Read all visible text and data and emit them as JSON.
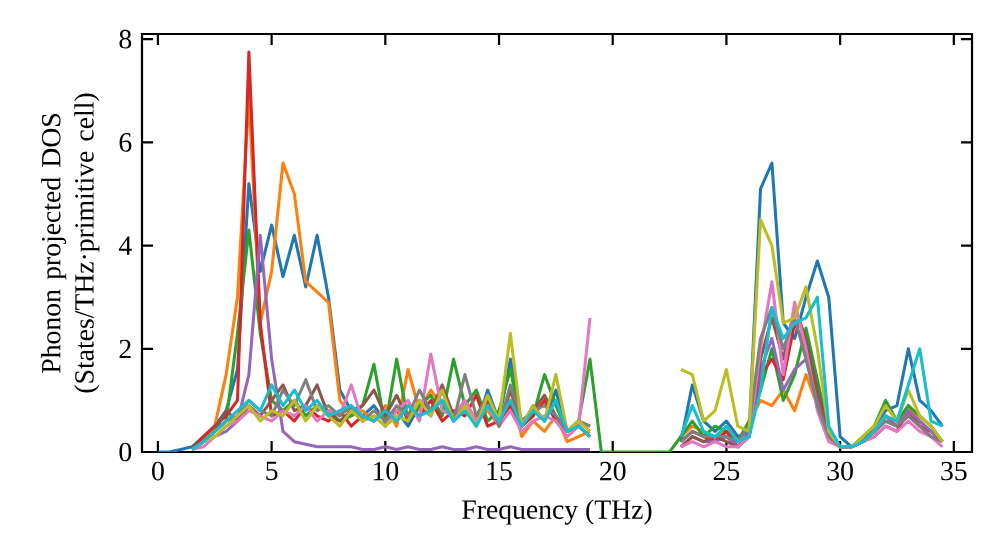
{
  "chart_data": {
    "type": "line",
    "xlabel": "Frequency (THz)",
    "ylabel": "Phonon projected DOS (States/THz·primitive cell)",
    "xlim": [
      -0.7,
      35.8
    ],
    "ylim": [
      0,
      8.1
    ],
    "xticks": [
      0,
      5,
      10,
      15,
      20,
      25,
      30,
      35
    ],
    "yticks": [
      0,
      2,
      4,
      6,
      8
    ],
    "grid": false,
    "marker": "none",
    "line_style": "solid",
    "x": [
      0,
      0.5,
      1,
      1.5,
      2,
      2.5,
      3,
      3.5,
      4,
      4.5,
      5,
      5.5,
      6,
      6.5,
      7,
      7.5,
      8,
      8.5,
      9,
      9.5,
      10,
      10.5,
      11,
      11.5,
      12,
      12.5,
      13,
      13.5,
      14,
      14.5,
      15,
      15.5,
      16,
      16.5,
      17,
      17.5,
      18,
      18.5,
      19,
      19.5,
      20,
      20.5,
      21,
      21.5,
      22,
      22.5,
      23,
      23.5,
      24,
      24.5,
      25,
      25.5,
      26,
      26.5,
      27,
      27.5,
      28,
      28.5,
      29,
      29.5,
      30,
      30.5,
      31,
      31.5,
      32,
      32.5,
      33,
      33.5,
      34,
      34.5
    ],
    "series": [
      {
        "color": "#1f77b4",
        "values": [
          0,
          0,
          0.05,
          0.1,
          0.3,
          0.5,
          0.8,
          1.6,
          5.2,
          3.5,
          4.4,
          3.4,
          4.2,
          3.2,
          4.2,
          3.0,
          1.2,
          0.8,
          0.7,
          0.9,
          0.6,
          0.8,
          0.5,
          0.9,
          0.7,
          1.2,
          0.6,
          1.0,
          0.5,
          1.2,
          0.6,
          1.8,
          0.5,
          0.9,
          0.6,
          1.2,
          0.4,
          0.5,
          0.3,
          null,
          null,
          null,
          null,
          null,
          null,
          null,
          0.2,
          1.3,
          0.6,
          0.4,
          0.6,
          0.3,
          0.4,
          5.1,
          5.6,
          2.5,
          2.2,
          3.0,
          3.7,
          3.0,
          0.3,
          0.1,
          0.2,
          0.5,
          0.8,
          0.9,
          2.0,
          1.0,
          0.8,
          0.5
        ]
      },
      {
        "color": "#ff7f0e",
        "values": [
          null,
          null,
          null,
          0.05,
          0.2,
          0.5,
          1.5,
          3.0,
          6.9,
          2.5,
          3.5,
          5.6,
          5.0,
          3.3,
          3.1,
          2.9,
          1.0,
          0.7,
          0.8,
          0.6,
          0.9,
          0.5,
          1.6,
          0.8,
          1.2,
          0.9,
          0.7,
          1.0,
          0.6,
          0.8,
          0.5,
          1.2,
          0.3,
          0.6,
          0.4,
          0.7,
          0.2,
          0.3,
          0.4,
          null,
          null,
          null,
          null,
          null,
          null,
          null,
          0.3,
          0.5,
          0.4,
          0.2,
          0.5,
          0.2,
          0.6,
          1.0,
          0.9,
          1.2,
          0.8,
          1.5,
          0.9,
          0.3,
          0.1,
          0.1,
          0.2,
          0.4,
          0.7,
          0.5,
          0.9,
          0.6,
          0.4,
          0.2
        ]
      },
      {
        "color": "#2ca02c",
        "values": [
          null,
          null,
          null,
          0.05,
          0.2,
          0.4,
          0.6,
          2.3,
          4.3,
          2.3,
          1.0,
          0.8,
          1.0,
          0.7,
          0.9,
          0.8,
          0.6,
          0.7,
          0.9,
          1.7,
          0.5,
          1.8,
          0.6,
          0.9,
          1.1,
          0.7,
          1.8,
          0.9,
          1.2,
          0.6,
          0.8,
          1.6,
          0.5,
          0.7,
          1.5,
          0.9,
          0.4,
          0.6,
          1.8,
          0,
          0,
          0,
          0,
          0,
          0,
          0,
          0.3,
          0.6,
          0.3,
          0.5,
          0.4,
          0.2,
          0.6,
          1.2,
          2.0,
          1.0,
          1.5,
          2.4,
          1.4,
          0.4,
          0.1,
          0.1,
          0.3,
          0.5,
          1.0,
          0.6,
          0.9,
          0.7,
          0.5,
          0.2
        ]
      },
      {
        "color": "#d62728",
        "values": [
          null,
          null,
          null,
          0.05,
          0.3,
          0.5,
          0.7,
          1.0,
          7.75,
          2.5,
          0.7,
          0.8,
          0.6,
          0.9,
          0.7,
          0.6,
          0.8,
          0.5,
          0.7,
          0.6,
          0.8,
          0.6,
          0.9,
          0.7,
          1.0,
          0.6,
          0.8,
          0.7,
          1.1,
          0.5,
          0.6,
          0.9,
          0.5,
          0.7,
          1.0,
          0.6,
          0.4,
          0.5,
          0.3,
          null,
          null,
          null,
          null,
          null,
          null,
          null,
          0.2,
          0.4,
          0.3,
          0.2,
          0.4,
          0.1,
          0.3,
          1.5,
          1.8,
          1.4,
          2.5,
          2.0,
          1.0,
          0.3,
          0.1,
          0.1,
          0.2,
          0.3,
          0.5,
          0.4,
          0.8,
          0.5,
          0.4,
          0.2
        ]
      },
      {
        "color": "#9467bd",
        "values": [
          null,
          null,
          null,
          0.05,
          0.2,
          0.3,
          0.4,
          0.6,
          1.5,
          4.2,
          1.8,
          0.4,
          0.2,
          0.15,
          0.1,
          0.1,
          0.1,
          0.1,
          0.05,
          0.05,
          0.1,
          0.05,
          0.1,
          0.05,
          0.05,
          0.1,
          0.05,
          0.05,
          0.1,
          0.05,
          0.05,
          0.1,
          0.05,
          0.05,
          0.05,
          0.05,
          0.05,
          0.05,
          0.05,
          null,
          null,
          null,
          null,
          null,
          null,
          null,
          0.1,
          0.3,
          0.2,
          0.2,
          0.3,
          0.1,
          0.4,
          1.6,
          2.2,
          1.2,
          1.6,
          1.8,
          1.0,
          0.3,
          0.1,
          0.1,
          0.2,
          0.4,
          0.7,
          0.5,
          0.8,
          0.6,
          0.4,
          0.2
        ]
      },
      {
        "color": "#8c564b",
        "values": [
          null,
          null,
          null,
          0.05,
          0.2,
          0.4,
          0.8,
          0.6,
          0.9,
          0.7,
          1.0,
          1.3,
          0.8,
          0.9,
          1.3,
          0.7,
          0.6,
          0.8,
          0.9,
          1.2,
          0.7,
          1.1,
          0.6,
          1.0,
          0.8,
          1.3,
          0.7,
          0.9,
          0.6,
          1.0,
          0.5,
          1.2,
          0.6,
          0.8,
          1.1,
          0.7,
          0.4,
          0.6,
          0.5,
          null,
          null,
          null,
          null,
          null,
          null,
          null,
          0.1,
          0.3,
          0.2,
          0.3,
          0.2,
          0.1,
          0.3,
          1.8,
          2.6,
          1.8,
          2.8,
          2.2,
          1.2,
          0.4,
          0.1,
          0.1,
          0.2,
          0.4,
          0.6,
          0.5,
          0.7,
          0.5,
          0.3,
          0.2
        ]
      },
      {
        "color": "#e377c2",
        "values": [
          null,
          null,
          null,
          0.05,
          0.1,
          0.3,
          0.5,
          0.6,
          0.8,
          0.7,
          0.6,
          0.8,
          0.7,
          0.9,
          0.6,
          0.8,
          0.7,
          1.3,
          0.6,
          0.7,
          0.5,
          0.8,
          1.0,
          0.6,
          1.9,
          0.8,
          0.7,
          1.0,
          0.6,
          0.9,
          0.5,
          0.8,
          0.4,
          0.6,
          0.7,
          0.6,
          0.3,
          0.5,
          2.6,
          null,
          null,
          null,
          null,
          null,
          null,
          null,
          0.1,
          0.2,
          0.1,
          0.2,
          0.1,
          0.1,
          0.3,
          2.0,
          3.3,
          1.5,
          2.9,
          2.0,
          0.8,
          0.2,
          0.1,
          0.1,
          0.2,
          0.3,
          0.5,
          0.4,
          0.6,
          0.4,
          0.3,
          0.1
        ]
      },
      {
        "color": "#7f7f7f",
        "values": [
          null,
          null,
          null,
          0.05,
          0.2,
          0.4,
          0.6,
          0.7,
          1.0,
          0.8,
          0.7,
          1.2,
          0.9,
          1.4,
          0.8,
          0.9,
          0.7,
          0.9,
          0.6,
          0.8,
          0.6,
          0.9,
          0.7,
          1.2,
          0.8,
          1.0,
          0.6,
          1.5,
          0.7,
          1.1,
          0.5,
          1.3,
          0.6,
          0.8,
          0.9,
          0.7,
          0.4,
          0.6,
          0.5,
          null,
          null,
          null,
          null,
          null,
          null,
          null,
          0.2,
          0.4,
          0.3,
          0.3,
          0.3,
          0.2,
          0.5,
          2.2,
          2.8,
          2.0,
          2.6,
          1.8,
          0.9,
          0.3,
          0.1,
          0.1,
          0.2,
          0.4,
          0.6,
          0.5,
          0.7,
          0.5,
          0.3,
          0.2
        ]
      },
      {
        "color": "#bcbd22",
        "values": [
          null,
          null,
          null,
          0.05,
          0.2,
          0.3,
          0.5,
          0.7,
          0.9,
          0.6,
          0.8,
          0.7,
          1.0,
          0.6,
          0.9,
          0.7,
          0.5,
          0.8,
          0.6,
          0.7,
          0.5,
          0.7,
          0.6,
          1.0,
          0.7,
          1.2,
          0.6,
          0.9,
          0.5,
          1.1,
          0.6,
          2.3,
          0.5,
          0.9,
          0.6,
          1.5,
          0.4,
          0.6,
          0.4,
          null,
          null,
          null,
          null,
          null,
          null,
          null,
          1.6,
          1.5,
          0.6,
          0.8,
          1.6,
          0.5,
          0.4,
          4.5,
          4.0,
          2.5,
          2.6,
          3.2,
          2.0,
          0.4,
          0.1,
          0.1,
          0.3,
          0.5,
          0.9,
          0.6,
          1.2,
          0.7,
          0.5,
          0.2
        ]
      },
      {
        "color": "#17becf",
        "values": [
          null,
          null,
          null,
          0.05,
          0.2,
          0.4,
          0.6,
          0.8,
          1.0,
          0.8,
          1.3,
          0.9,
          1.2,
          0.8,
          1.0,
          0.7,
          0.8,
          0.9,
          0.7,
          0.6,
          0.8,
          0.6,
          0.9,
          0.7,
          0.8,
          1.0,
          0.6,
          0.8,
          0.5,
          0.9,
          0.6,
          1.0,
          0.5,
          0.8,
          0.6,
          1.0,
          0.4,
          0.5,
          0.3,
          null,
          null,
          null,
          null,
          null,
          null,
          null,
          0.3,
          0.9,
          0.4,
          0.3,
          0.5,
          0.2,
          0.3,
          1.2,
          2.8,
          2.2,
          2.5,
          2.6,
          3.0,
          0.5,
          0.1,
          0.1,
          0.2,
          0.4,
          0.7,
          0.6,
          1.3,
          2.0,
          0.6,
          0.5
        ]
      }
    ]
  }
}
